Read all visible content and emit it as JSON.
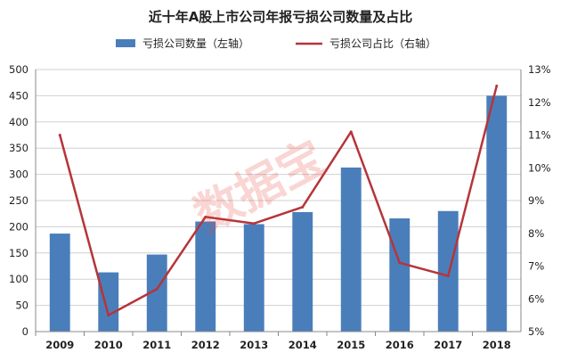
{
  "chart_data": {
    "type": "bar",
    "title": "近十年A股上市公司年报亏损公司数量及占比",
    "categories": [
      "2009",
      "2010",
      "2011",
      "2012",
      "2013",
      "2014",
      "2015",
      "2016",
      "2017",
      "2018"
    ],
    "series": [
      {
        "name": "亏损公司数量（左轴）",
        "type": "bar",
        "axis": "left",
        "color": "#4a7ebb",
        "values": [
          187,
          113,
          147,
          210,
          205,
          228,
          313,
          216,
          230,
          450
        ]
      },
      {
        "name": "亏损公司占比（右轴）",
        "type": "line",
        "axis": "right",
        "color": "#b5353a",
        "values": [
          11.0,
          5.5,
          6.3,
          8.5,
          8.3,
          8.8,
          11.1,
          7.1,
          6.7,
          12.5
        ]
      }
    ],
    "y_left": {
      "min": 0,
      "max": 500,
      "step": 50,
      "ticks": [
        "0",
        "50",
        "100",
        "150",
        "200",
        "250",
        "300",
        "350",
        "400",
        "450",
        "500"
      ]
    },
    "y_right": {
      "min": 5,
      "max": 13,
      "step": 1,
      "ticks": [
        "5%",
        "6%",
        "7%",
        "8%",
        "9%",
        "10%",
        "11%",
        "12%",
        "13%"
      ]
    },
    "grid": true,
    "legend_position": "top"
  },
  "watermark": "数据宝"
}
